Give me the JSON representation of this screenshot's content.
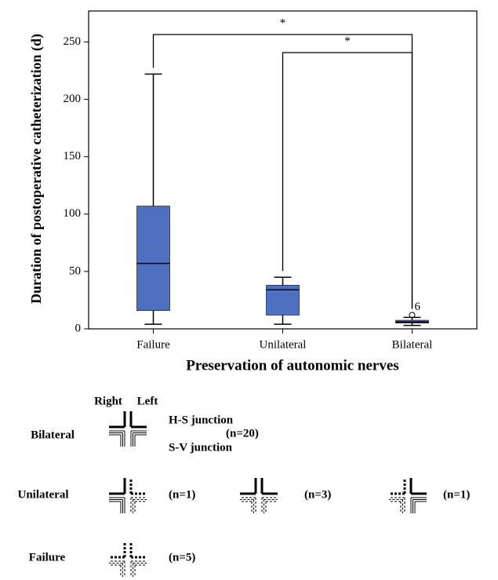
{
  "chart_data": {
    "type": "box",
    "y_label": "Duration of postoperative catheterization (d)",
    "x_label": "Preservation of autonomic nerves",
    "categories": [
      "Failure",
      "Unilateral",
      "Bilateral"
    ],
    "boxes": [
      {
        "low": 4,
        "q1": 16,
        "median": 57,
        "q3": 107,
        "high": 222
      },
      {
        "low": 4,
        "q1": 12,
        "median": 34,
        "q3": 38,
        "high": 45
      },
      {
        "low": 3,
        "q1": 5,
        "median": 6,
        "q3": 7.5,
        "high": 10,
        "outliers": [
          {
            "value": 12,
            "case": "6"
          }
        ]
      }
    ],
    "color": "#4f6fc0",
    "ylim": [
      0,
      277
    ],
    "yticks": [
      0,
      50,
      100,
      150,
      200,
      250
    ],
    "significance": [
      {
        "label": "*",
        "categories": [
          0,
          2
        ]
      },
      {
        "label": "*",
        "categories": [
          1,
          2
        ]
      }
    ]
  },
  "diagram": {
    "side_labels": [
      "Right",
      "Left"
    ],
    "rows": [
      "Bilateral",
      "Unilateral",
      "Failure"
    ],
    "junctions": [
      "H-S junction",
      "S-V junction"
    ],
    "counts": [
      "(n=20)",
      "(n=1)",
      "(n=3)",
      "(n=1)",
      "(n=5)"
    ]
  }
}
